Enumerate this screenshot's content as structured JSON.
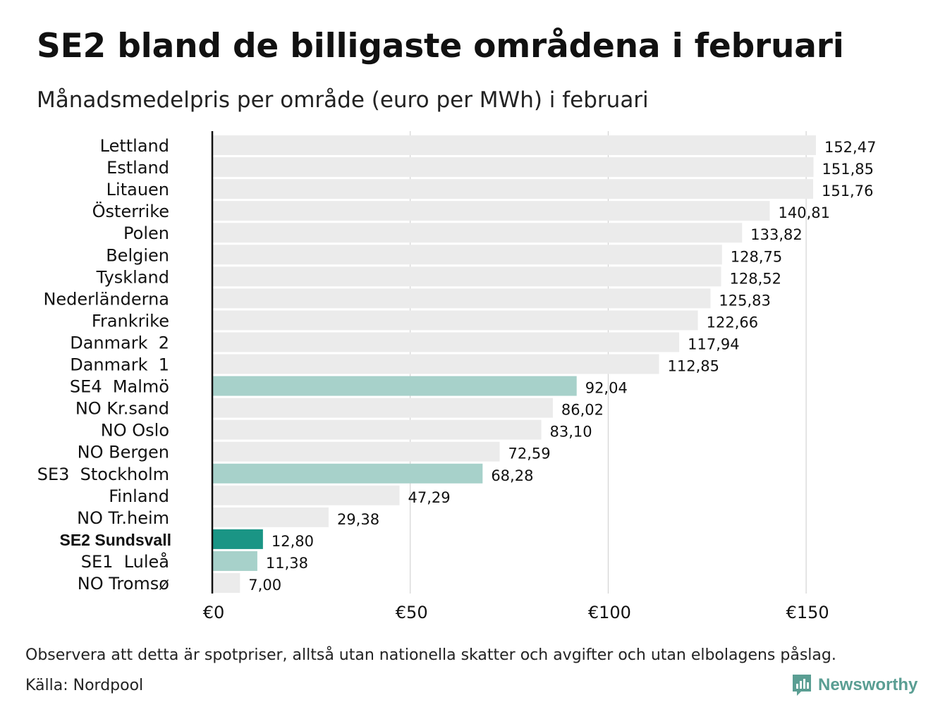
{
  "title": "SE2 bland de billigaste områdena i februari",
  "subtitle": "Månadsmedelpris per område (euro per MWh) i februari",
  "footnote": "Observera att detta är spotpriser, alltså utan nationella skatter och avgifter och utan elbolagens påslag.",
  "source": "Källa: Nordpool",
  "logo": {
    "text": "Newsworthy",
    "icon": "newsworthy-logo-icon"
  },
  "colors": {
    "default": "#ebebeb",
    "se_other": "#a7d1ca",
    "highlight": "#1a9585",
    "grid": "#cccccc",
    "axis": "#111111",
    "logo": "#5a9e93"
  },
  "chart_data": {
    "type": "bar",
    "orientation": "horizontal",
    "categories": [
      "Lettland",
      "Estland",
      "Litauen",
      "Österrike",
      "Polen",
      "Belgien",
      "Tyskland",
      "Nederländerna",
      "Frankrike",
      "Danmark  2",
      "Danmark  1",
      "SE4  Malmö",
      "NO Kr.sand",
      "NO Oslo",
      "NO Bergen",
      "SE3  Stockholm",
      "Finland",
      "NO Tr.heim",
      "SE2 Sundsvall",
      "SE1  Luleå",
      "NO Tromsø"
    ],
    "values": [
      152.47,
      151.85,
      151.76,
      140.81,
      133.82,
      128.75,
      128.52,
      125.83,
      122.66,
      117.94,
      112.85,
      92.04,
      86.02,
      83.1,
      72.59,
      68.28,
      47.29,
      29.38,
      12.8,
      11.38,
      7.0
    ],
    "value_labels": [
      "152,47",
      "151,85",
      "151,76",
      "140,81",
      "133,82",
      "128,75",
      "128,52",
      "125,83",
      "122,66",
      "117,94",
      "112,85",
      "92,04",
      "86,02",
      "83,10",
      "72,59",
      "68,28",
      "47,29",
      "29,38",
      "12,80",
      "11,38",
      "7,00"
    ],
    "color_keys": [
      "default",
      "default",
      "default",
      "default",
      "default",
      "default",
      "default",
      "default",
      "default",
      "default",
      "default",
      "se_other",
      "default",
      "default",
      "default",
      "se_other",
      "default",
      "default",
      "highlight",
      "se_other",
      "default"
    ],
    "highlight_category": "SE2 Sundsvall",
    "xlim": [
      0,
      160
    ],
    "xticks": [
      0,
      50,
      100,
      150
    ],
    "xtick_labels": [
      "€0",
      "€50",
      "€100",
      "€150"
    ],
    "grid": true
  }
}
